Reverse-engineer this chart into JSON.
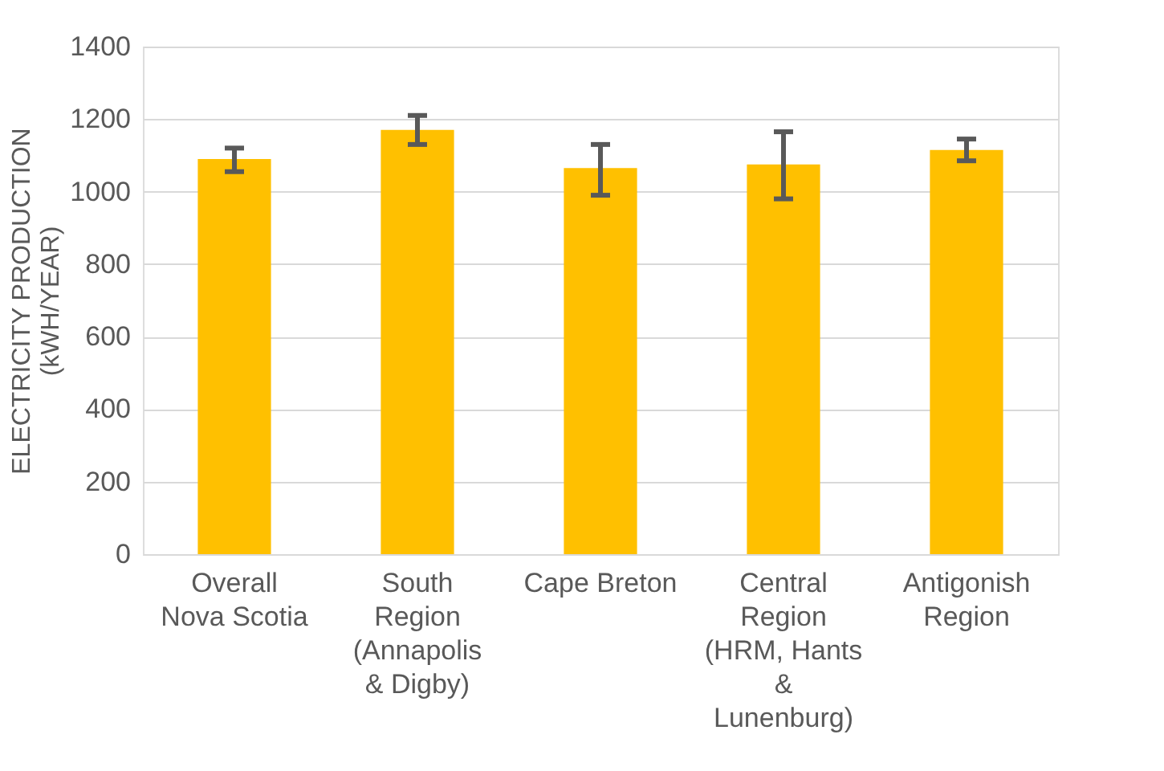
{
  "chart_data": {
    "type": "bar",
    "ylabel": "ELECTRICITY PRODUCTION (kWH/YEAR)",
    "categories": [
      "Overall Nova Scotia",
      "South Region (Annapolis & Digby)",
      "Cape Breton",
      "Central Region (HRM, Hants & Lunenburg)",
      "Antigonish Region"
    ],
    "values": [
      1090,
      1170,
      1065,
      1075,
      1115
    ],
    "errors": [
      [
        1055,
        1120
      ],
      [
        1130,
        1210
      ],
      [
        990,
        1130
      ],
      [
        980,
        1165
      ],
      [
        1085,
        1145
      ]
    ],
    "color": "#ffc000",
    "ylim": [
      0,
      1400
    ],
    "yticks": [
      0,
      200,
      400,
      600,
      800,
      1000,
      1200,
      1400
    ],
    "grid": "y"
  }
}
